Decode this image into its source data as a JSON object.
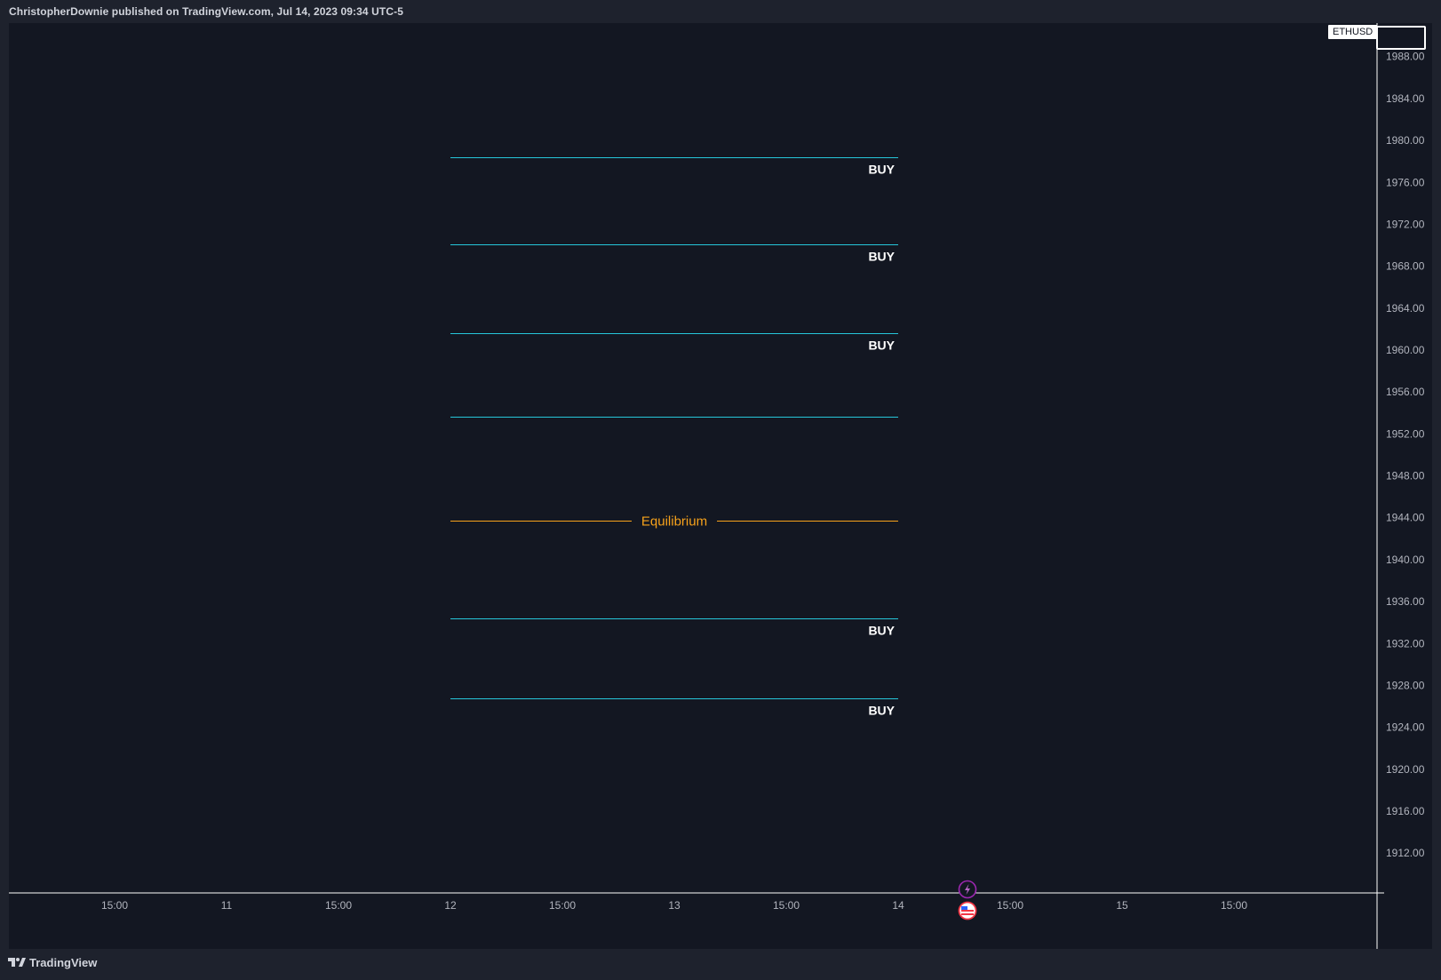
{
  "header": {
    "text": "ChristopherDownie published on TradingView.com, Jul 14, 2023 09:34 UTC-5"
  },
  "symbol": "ETHUSD",
  "footer": {
    "brand": "TradingView"
  },
  "icons": {
    "flash": "lightning-icon",
    "flag": "us-flag-icon"
  },
  "colors": {
    "background": "#131722",
    "level_line": "#26c6da",
    "equilibrium": "#f7a21b",
    "text": "#b2b5be"
  },
  "chart_data": {
    "type": "line",
    "symbol": "ETHUSD",
    "y_axis": {
      "range": [
        1908.2,
        1991.2
      ],
      "ticks": [
        "1988.00",
        "1984.00",
        "1980.00",
        "1976.00",
        "1972.00",
        "1968.00",
        "1964.00",
        "1960.00",
        "1956.00",
        "1952.00",
        "1948.00",
        "1944.00",
        "1940.00",
        "1936.00",
        "1932.00",
        "1928.00",
        "1924.00",
        "1920.00",
        "1916.00",
        "1912.00"
      ]
    },
    "x_axis": {
      "ticks": [
        "15:00",
        "11",
        "15:00",
        "12",
        "15:00",
        "13",
        "15:00",
        "14",
        "15:00",
        "15",
        "15:00"
      ]
    },
    "levels": [
      {
        "price": 1978.4,
        "label": "BUY"
      },
      {
        "price": 1970.1,
        "label": "BUY"
      },
      {
        "price": 1961.6,
        "label": "BUY"
      },
      {
        "price": 1953.6,
        "label": ""
      },
      {
        "price": 1943.7,
        "label": "Equilibrium"
      },
      {
        "price": 1934.4,
        "label": "BUY"
      },
      {
        "price": 1926.8,
        "label": "BUY"
      }
    ],
    "levels_span": [
      "12",
      "14"
    ]
  }
}
